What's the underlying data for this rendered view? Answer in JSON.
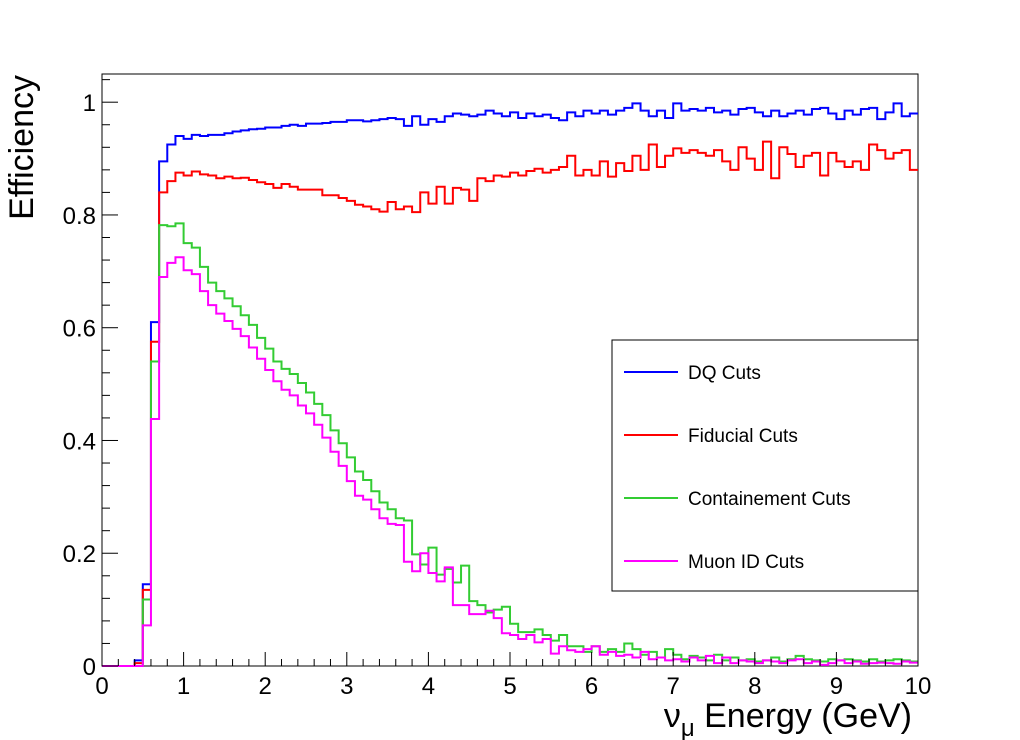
{
  "chart_data": {
    "type": "line",
    "step": true,
    "title": "",
    "xlabel": {
      "symbol": "ν",
      "subscript": "μ",
      "text": " Energy (GeV)"
    },
    "ylabel": "Efficiency",
    "xlim": [
      0,
      10
    ],
    "ylim": [
      0,
      1.05
    ],
    "grid": false,
    "legend_position": "right",
    "x_ticks": [
      0,
      1,
      2,
      3,
      4,
      5,
      6,
      7,
      8,
      9,
      10
    ],
    "x_tick_labels": [
      "0",
      "1",
      "2",
      "3",
      "4",
      "5",
      "6",
      "7",
      "8",
      "9",
      "10"
    ],
    "y_ticks": [
      0,
      0.2,
      0.4,
      0.6,
      0.8,
      1
    ],
    "y_tick_labels": [
      "0",
      "0.2",
      "0.4",
      "0.6",
      "0.8",
      "1"
    ],
    "bin_width": 0.1,
    "x": [
      0.0,
      0.1,
      0.2,
      0.3,
      0.4,
      0.5,
      0.6,
      0.7,
      0.8,
      0.9,
      1.0,
      1.1,
      1.2,
      1.3,
      1.4,
      1.5,
      1.6,
      1.7,
      1.8,
      1.9,
      2.0,
      2.1,
      2.2,
      2.3,
      2.4,
      2.5,
      2.6,
      2.7,
      2.8,
      2.9,
      3.0,
      3.1,
      3.2,
      3.3,
      3.4,
      3.5,
      3.6,
      3.7,
      3.8,
      3.9,
      4.0,
      4.1,
      4.2,
      4.3,
      4.4,
      4.5,
      4.6,
      4.7,
      4.8,
      4.9,
      5.0,
      5.1,
      5.2,
      5.3,
      5.4,
      5.5,
      5.6,
      5.7,
      5.8,
      5.9,
      6.0,
      6.1,
      6.2,
      6.3,
      6.4,
      6.5,
      6.6,
      6.7,
      6.8,
      6.9,
      7.0,
      7.1,
      7.2,
      7.3,
      7.4,
      7.5,
      7.6,
      7.7,
      7.8,
      7.9,
      8.0,
      8.1,
      8.2,
      8.3,
      8.4,
      8.5,
      8.6,
      8.7,
      8.8,
      8.9,
      9.0,
      9.1,
      9.2,
      9.3,
      9.4,
      9.5,
      9.6,
      9.7,
      9.8,
      9.9
    ],
    "series": [
      {
        "name": "DQ Cuts",
        "color": "#0000ff",
        "values": [
          0,
          0,
          0,
          0,
          0.01,
          0.145,
          0.61,
          0.895,
          0.925,
          0.94,
          0.935,
          0.942,
          0.94,
          0.942,
          0.942,
          0.945,
          0.948,
          0.95,
          0.952,
          0.953,
          0.955,
          0.955,
          0.958,
          0.96,
          0.958,
          0.962,
          0.962,
          0.963,
          0.965,
          0.965,
          0.968,
          0.968,
          0.966,
          0.968,
          0.97,
          0.972,
          0.97,
          0.958,
          0.975,
          0.96,
          0.97,
          0.965,
          0.975,
          0.98,
          0.978,
          0.975,
          0.978,
          0.985,
          0.98,
          0.975,
          0.982,
          0.972,
          0.98,
          0.975,
          0.978,
          0.972,
          0.968,
          0.982,
          0.975,
          0.985,
          0.98,
          0.985,
          0.978,
          0.985,
          0.99,
          0.998,
          0.985,
          0.975,
          0.985,
          0.972,
          0.998,
          0.985,
          0.988,
          0.985,
          0.99,
          0.982,
          0.985,
          0.978,
          0.988,
          0.99,
          0.982,
          0.975,
          0.985,
          0.975,
          0.98,
          0.985,
          0.978,
          0.988,
          0.99,
          0.98,
          0.97,
          0.985,
          0.978,
          0.988,
          0.99,
          0.97,
          0.982,
          0.998,
          0.975,
          0.98
        ]
      },
      {
        "name": "Fiducial Cuts",
        "color": "#ff0000",
        "values": [
          0,
          0,
          0,
          0,
          0.005,
          0.135,
          0.575,
          0.84,
          0.86,
          0.875,
          0.87,
          0.877,
          0.872,
          0.87,
          0.865,
          0.868,
          0.865,
          0.866,
          0.862,
          0.858,
          0.855,
          0.848,
          0.855,
          0.85,
          0.845,
          0.845,
          0.845,
          0.835,
          0.835,
          0.83,
          0.825,
          0.818,
          0.815,
          0.81,
          0.806,
          0.823,
          0.81,
          0.815,
          0.805,
          0.84,
          0.82,
          0.85,
          0.82,
          0.848,
          0.845,
          0.825,
          0.865,
          0.86,
          0.87,
          0.868,
          0.875,
          0.87,
          0.878,
          0.882,
          0.875,
          0.88,
          0.885,
          0.905,
          0.87,
          0.88,
          0.87,
          0.895,
          0.868,
          0.892,
          0.878,
          0.905,
          0.88,
          0.925,
          0.885,
          0.905,
          0.918,
          0.91,
          0.915,
          0.91,
          0.905,
          0.915,
          0.895,
          0.88,
          0.92,
          0.9,
          0.88,
          0.93,
          0.865,
          0.92,
          0.908,
          0.885,
          0.905,
          0.91,
          0.87,
          0.91,
          0.895,
          0.885,
          0.895,
          0.88,
          0.925,
          0.915,
          0.9,
          0.91,
          0.915,
          0.88
        ]
      },
      {
        "name": "Containement Cuts",
        "color": "#33cc33",
        "values": [
          0,
          0,
          0,
          0,
          0,
          0.118,
          0.54,
          0.782,
          0.78,
          0.785,
          0.75,
          0.742,
          0.708,
          0.68,
          0.665,
          0.652,
          0.638,
          0.622,
          0.605,
          0.582,
          0.563,
          0.54,
          0.527,
          0.518,
          0.502,
          0.485,
          0.465,
          0.445,
          0.418,
          0.395,
          0.37,
          0.345,
          0.33,
          0.31,
          0.29,
          0.278,
          0.262,
          0.258,
          0.198,
          0.18,
          0.21,
          0.162,
          0.172,
          0.148,
          0.178,
          0.115,
          0.108,
          0.095,
          0.1,
          0.105,
          0.075,
          0.06,
          0.06,
          0.065,
          0.055,
          0.045,
          0.055,
          0.035,
          0.035,
          0.025,
          0.035,
          0.025,
          0.03,
          0.025,
          0.04,
          0.03,
          0.02,
          0.025,
          0.015,
          0.03,
          0.02,
          0.012,
          0.018,
          0.015,
          0.01,
          0.02,
          0.01,
          0.015,
          0.01,
          0.012,
          0.008,
          0.01,
          0.015,
          0.008,
          0.012,
          0.018,
          0.012,
          0.01,
          0.008,
          0.012,
          0.01,
          0.012,
          0.01,
          0.008,
          0.012,
          0.008,
          0.01,
          0.012,
          0.01,
          0.008
        ]
      },
      {
        "name": "Muon ID Cuts",
        "color": "#ff00ff",
        "values": [
          0,
          0,
          0,
          0,
          0,
          0.072,
          0.438,
          0.69,
          0.715,
          0.725,
          0.702,
          0.695,
          0.665,
          0.64,
          0.625,
          0.612,
          0.598,
          0.585,
          0.565,
          0.545,
          0.525,
          0.505,
          0.49,
          0.48,
          0.462,
          0.448,
          0.428,
          0.405,
          0.38,
          0.355,
          0.328,
          0.302,
          0.295,
          0.278,
          0.262,
          0.252,
          0.25,
          0.185,
          0.168,
          0.2,
          0.165,
          0.15,
          0.175,
          0.108,
          0.108,
          0.092,
          0.092,
          0.098,
          0.085,
          0.058,
          0.055,
          0.048,
          0.055,
          0.042,
          0.048,
          0.022,
          0.035,
          0.028,
          0.025,
          0.03,
          0.035,
          0.02,
          0.025,
          0.018,
          0.02,
          0.015,
          0.025,
          0.012,
          0.015,
          0.01,
          0.012,
          0.008,
          0.015,
          0.01,
          0.018,
          0.005,
          0.015,
          0.005,
          0.01,
          0.008,
          0.005,
          0.01,
          0.008,
          0.005,
          0.01,
          0.012,
          0.005,
          0.008,
          0.002,
          0.005,
          0.01,
          0.005,
          0.008,
          0.004,
          0.005,
          0.006,
          0.005,
          0.004,
          0.008,
          0.006
        ]
      }
    ]
  }
}
